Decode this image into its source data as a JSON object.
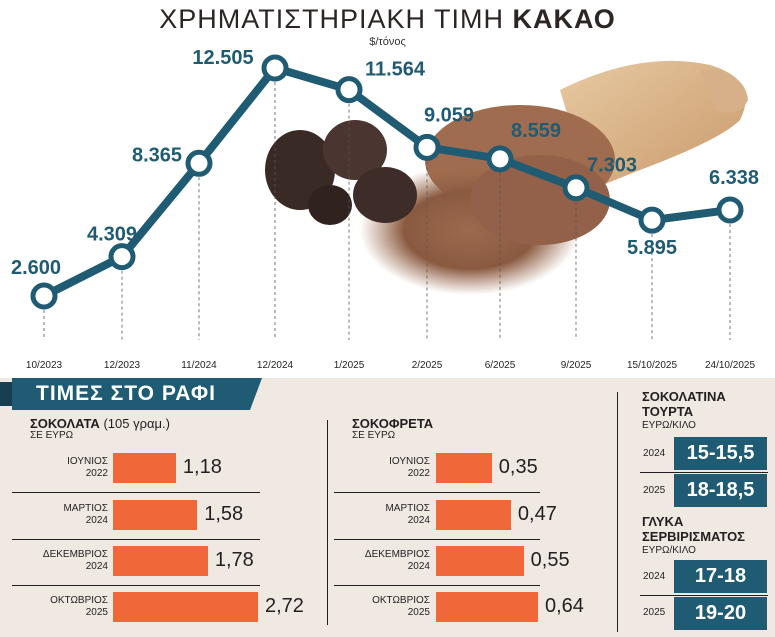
{
  "title_regular": "ΧΡΗΜΑΤΙΣΤΗΡΙΑΚΗ ΤΙΜΗ ",
  "title_bold": "ΚΑΚΑΟ",
  "unit": "$/τόνος",
  "colors": {
    "line": "#1f5b73",
    "bar": "#f0683a",
    "pill": "#1f5b73",
    "panel": "#efe9e2"
  },
  "chart_data": [
    {
      "type": "line",
      "title": "ΧΡΗΜΑΤΙΣΤΗΡΙΑΚΗ ΤΙΜΗ ΚΑΚΑΟ",
      "ylabel": "$/τόνος",
      "categories": [
        "10/2023",
        "12/2023",
        "11/2024",
        "12/2024",
        "1/2025",
        "2/2025",
        "6/2025",
        "9/2025",
        "15/10/2025",
        "24/10/2025"
      ],
      "values": [
        2600,
        4309,
        8365,
        12505,
        11564,
        9059,
        8559,
        7303,
        5895,
        6338
      ],
      "labels": [
        "2.600",
        "4.309",
        "8.365",
        "12.505",
        "11.564",
        "9.059",
        "8.559",
        "7.303",
        "5.895",
        "6.338"
      ]
    },
    {
      "type": "bar",
      "title": "ΣΟΚΟΛΑΤΑ",
      "subtitle": "(105 γραμ.)",
      "ylabel": "ΣΕ ΕΥΡΩ",
      "categories": [
        [
          "ΙΟΥΝΙΟΣ",
          "2022"
        ],
        [
          "ΜΑΡΤΙΟΣ",
          "2024"
        ],
        [
          "ΔΕΚΕΜΒΡΙΟΣ",
          "2024"
        ],
        [
          "ΟΚΤΩΒΡΙΟΣ",
          "2025"
        ]
      ],
      "values": [
        1.18,
        1.58,
        1.78,
        2.72
      ],
      "labels": [
        "1,18",
        "1,58",
        "1,78",
        "2,72"
      ]
    },
    {
      "type": "bar",
      "title": "ΣΟΚΟΦΡΕΤΑ",
      "ylabel": "ΣΕ ΕΥΡΩ",
      "categories": [
        [
          "ΙΟΥΝΙΟΣ",
          "2022"
        ],
        [
          "ΜΑΡΤΙΟΣ",
          "2024"
        ],
        [
          "ΔΕΚΕΜΒΡΙΟΣ",
          "2024"
        ],
        [
          "ΟΚΤΩΒΡΙΟΣ",
          "2025"
        ]
      ],
      "values": [
        0.35,
        0.47,
        0.55,
        0.64
      ],
      "labels": [
        "0,35",
        "0,47",
        "0,55",
        "0,64"
      ]
    }
  ],
  "shelf_banner": "ΤΙΜΕΣ ΣΤΟ ΡΑΦΙ",
  "side": {
    "cake": {
      "title1": "ΣΟΚΟΛΑΤΙΝΑ",
      "title2": "ΤΟΥΡΤΑ",
      "unit": "ΕΥΡΩ/ΚΙΛΟ",
      "rows": [
        {
          "year": "2024",
          "value": "15-15,5"
        },
        {
          "year": "2025",
          "value": "18-18,5"
        }
      ]
    },
    "sweets": {
      "title1": "ΓΛΥΚΑ",
      "title2": "ΣΕΡΒΙΡΙΣΜΑΤΟΣ",
      "unit": "ΕΥΡΩ/ΚΙΛΟ",
      "rows": [
        {
          "year": "2024",
          "value": "17-18"
        },
        {
          "year": "2025",
          "value": "19-20"
        }
      ]
    }
  }
}
